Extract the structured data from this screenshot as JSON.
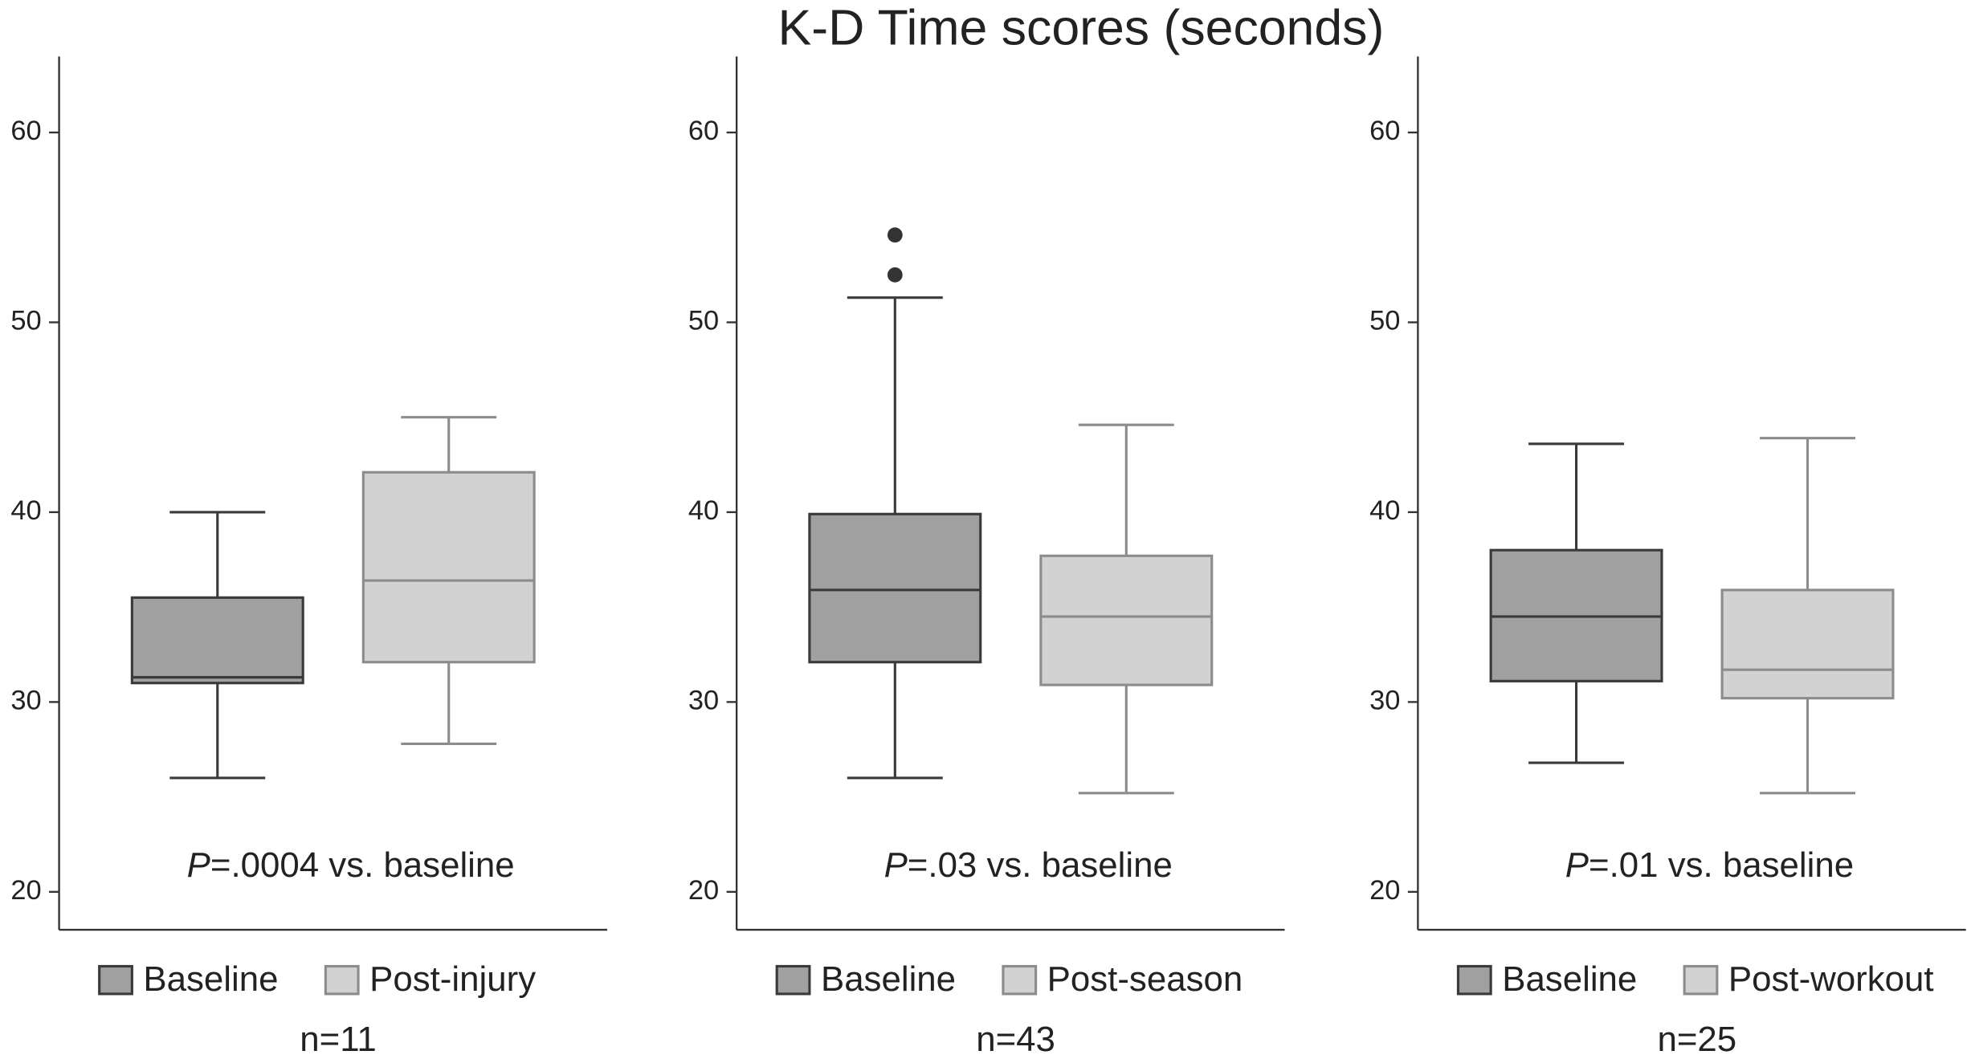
{
  "title": "K-D Time scores (seconds)",
  "chart_data": [
    {
      "type": "box",
      "annotation": "P=.0004 vs. baseline",
      "note": "n=11",
      "ylim": [
        18,
        64
      ],
      "yticks": [
        20,
        30,
        40,
        50,
        60
      ],
      "series": [
        {
          "name": "Baseline",
          "color": "#a0a0a0",
          "edge": "#3a3a3a",
          "min": 26.0,
          "q1": 31.0,
          "median": 31.3,
          "q3": 35.5,
          "max": 40.0
        },
        {
          "name": "Post-injury",
          "color": "#d2d2d2",
          "edge": "#8c8c8c",
          "min": 27.8,
          "q1": 32.1,
          "median": 36.4,
          "q3": 42.1,
          "max": 45.0
        }
      ]
    },
    {
      "type": "box",
      "annotation": "P=.03 vs. baseline",
      "note": "n=43",
      "ylim": [
        18,
        64
      ],
      "yticks": [
        20,
        30,
        40,
        50,
        60
      ],
      "series": [
        {
          "name": "Baseline",
          "color": "#a0a0a0",
          "edge": "#3a3a3a",
          "min": 26.0,
          "q1": 32.1,
          "median": 35.9,
          "q3": 39.9,
          "max": 51.3,
          "outliers": [
            52.5,
            54.6
          ]
        },
        {
          "name": "Post-season",
          "color": "#d2d2d2",
          "edge": "#8c8c8c",
          "min": 25.2,
          "q1": 30.9,
          "median": 34.5,
          "q3": 37.7,
          "max": 44.6
        }
      ]
    },
    {
      "type": "box",
      "annotation": "P=.01 vs. baseline",
      "note": "n=25",
      "ylim": [
        18,
        64
      ],
      "yticks": [
        20,
        30,
        40,
        50,
        60
      ],
      "series": [
        {
          "name": "Baseline",
          "color": "#a0a0a0",
          "edge": "#3a3a3a",
          "min": 26.8,
          "q1": 31.1,
          "median": 34.5,
          "q3": 38.0,
          "max": 43.6
        },
        {
          "name": "Post-workout",
          "color": "#d2d2d2",
          "edge": "#8c8c8c",
          "min": 25.2,
          "q1": 30.2,
          "median": 31.7,
          "q3": 35.9,
          "max": 43.9
        }
      ]
    }
  ]
}
